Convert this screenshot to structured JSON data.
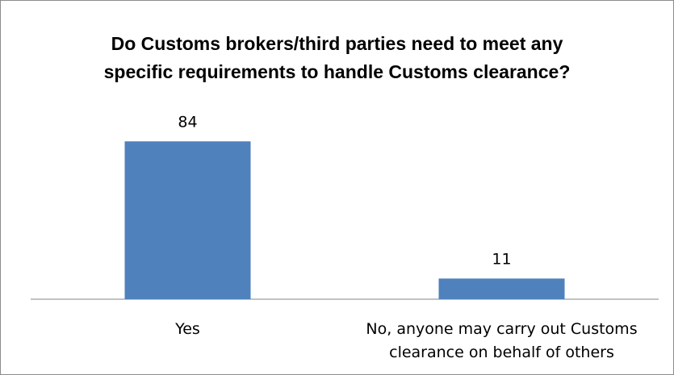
{
  "chart_data": {
    "type": "bar",
    "title_lines": [
      "Do Customs brokers/third parties need to meet any",
      "specific requirements to handle Customs clearance?"
    ],
    "categories": [
      [
        "Yes"
      ],
      [
        "No, anyone may carry out Customs",
        "clearance on behalf of others"
      ]
    ],
    "values": [
      84,
      11
    ],
    "data_labels": [
      "84",
      "11"
    ],
    "xlabel": "",
    "ylabel": "",
    "ylim": [
      0,
      100
    ],
    "grid": false,
    "legend": "none",
    "bar_color": "#4f81bd",
    "axis_color": "#868686"
  }
}
